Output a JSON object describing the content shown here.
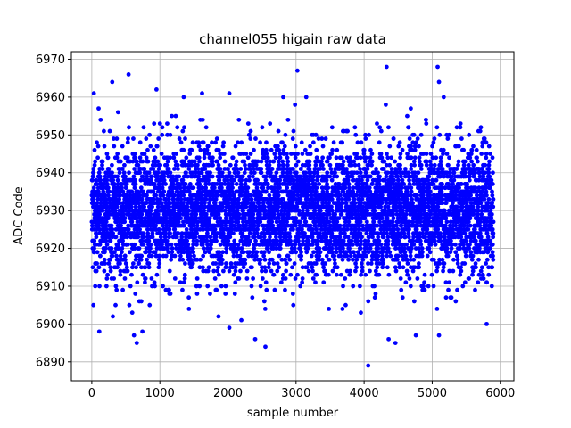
{
  "chart_data": {
    "type": "scatter",
    "title": "channel055 higain raw data",
    "xlabel": "sample number",
    "ylabel": "ADC Code",
    "xlim": [
      -300,
      6200
    ],
    "ylim": [
      6885,
      6972
    ],
    "xticks": [
      0,
      1000,
      2000,
      3000,
      4000,
      5000,
      6000
    ],
    "yticks": [
      6890,
      6900,
      6910,
      6920,
      6930,
      6940,
      6950,
      6960,
      6970
    ],
    "grid": true,
    "marker_color": "#0000ff",
    "n_samples": 5900,
    "center_value": 6930,
    "typical_range": [
      6910,
      6950
    ],
    "outliers": [
      {
        "x": 30,
        "y": 6961
      },
      {
        "x": 100,
        "y": 6957
      },
      {
        "x": 110,
        "y": 6898
      },
      {
        "x": 300,
        "y": 6964
      },
      {
        "x": 540,
        "y": 6966
      },
      {
        "x": 620,
        "y": 6897
      },
      {
        "x": 660,
        "y": 6895
      },
      {
        "x": 950,
        "y": 6962
      },
      {
        "x": 1350,
        "y": 6960
      },
      {
        "x": 1620,
        "y": 6961
      },
      {
        "x": 2020,
        "y": 6961
      },
      {
        "x": 2020,
        "y": 6899
      },
      {
        "x": 2400,
        "y": 6896
      },
      {
        "x": 2550,
        "y": 6894
      },
      {
        "x": 3020,
        "y": 6967
      },
      {
        "x": 4060,
        "y": 6889
      },
      {
        "x": 4330,
        "y": 6968
      },
      {
        "x": 4360,
        "y": 6896
      },
      {
        "x": 4460,
        "y": 6895
      },
      {
        "x": 4760,
        "y": 6897
      },
      {
        "x": 5080,
        "y": 6968
      },
      {
        "x": 5100,
        "y": 6964
      },
      {
        "x": 5100,
        "y": 6897
      },
      {
        "x": 5800,
        "y": 6900
      }
    ]
  }
}
